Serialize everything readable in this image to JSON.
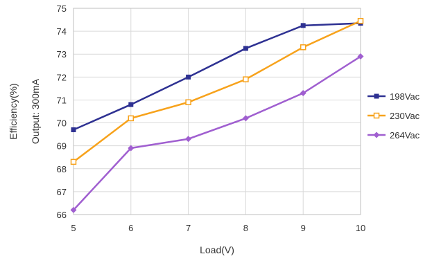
{
  "chart_data": {
    "type": "line",
    "xlabel": "Load(V)",
    "ylabel": [
      "Efficiency(%)",
      "Output: 300mA"
    ],
    "x": [
      5,
      6,
      7,
      8,
      9,
      10
    ],
    "xlim": [
      5,
      10
    ],
    "ylim": [
      66,
      75
    ],
    "yticks": [
      66,
      67,
      68,
      69,
      70,
      71,
      72,
      73,
      74,
      75
    ],
    "grid": true,
    "legend_position": "right",
    "series": [
      {
        "name": "198Vac",
        "color": "#2e3192",
        "marker": "square-filled",
        "values": [
          69.7,
          70.8,
          72.0,
          73.25,
          74.25,
          74.35
        ]
      },
      {
        "name": "230Vac",
        "color": "#f7a21b",
        "marker": "square-open",
        "values": [
          68.3,
          70.2,
          70.9,
          71.9,
          73.3,
          74.45
        ]
      },
      {
        "name": "264Vac",
        "color": "#a05fd0",
        "marker": "diamond",
        "values": [
          66.2,
          68.9,
          69.3,
          70.2,
          71.3,
          72.9
        ]
      }
    ]
  }
}
